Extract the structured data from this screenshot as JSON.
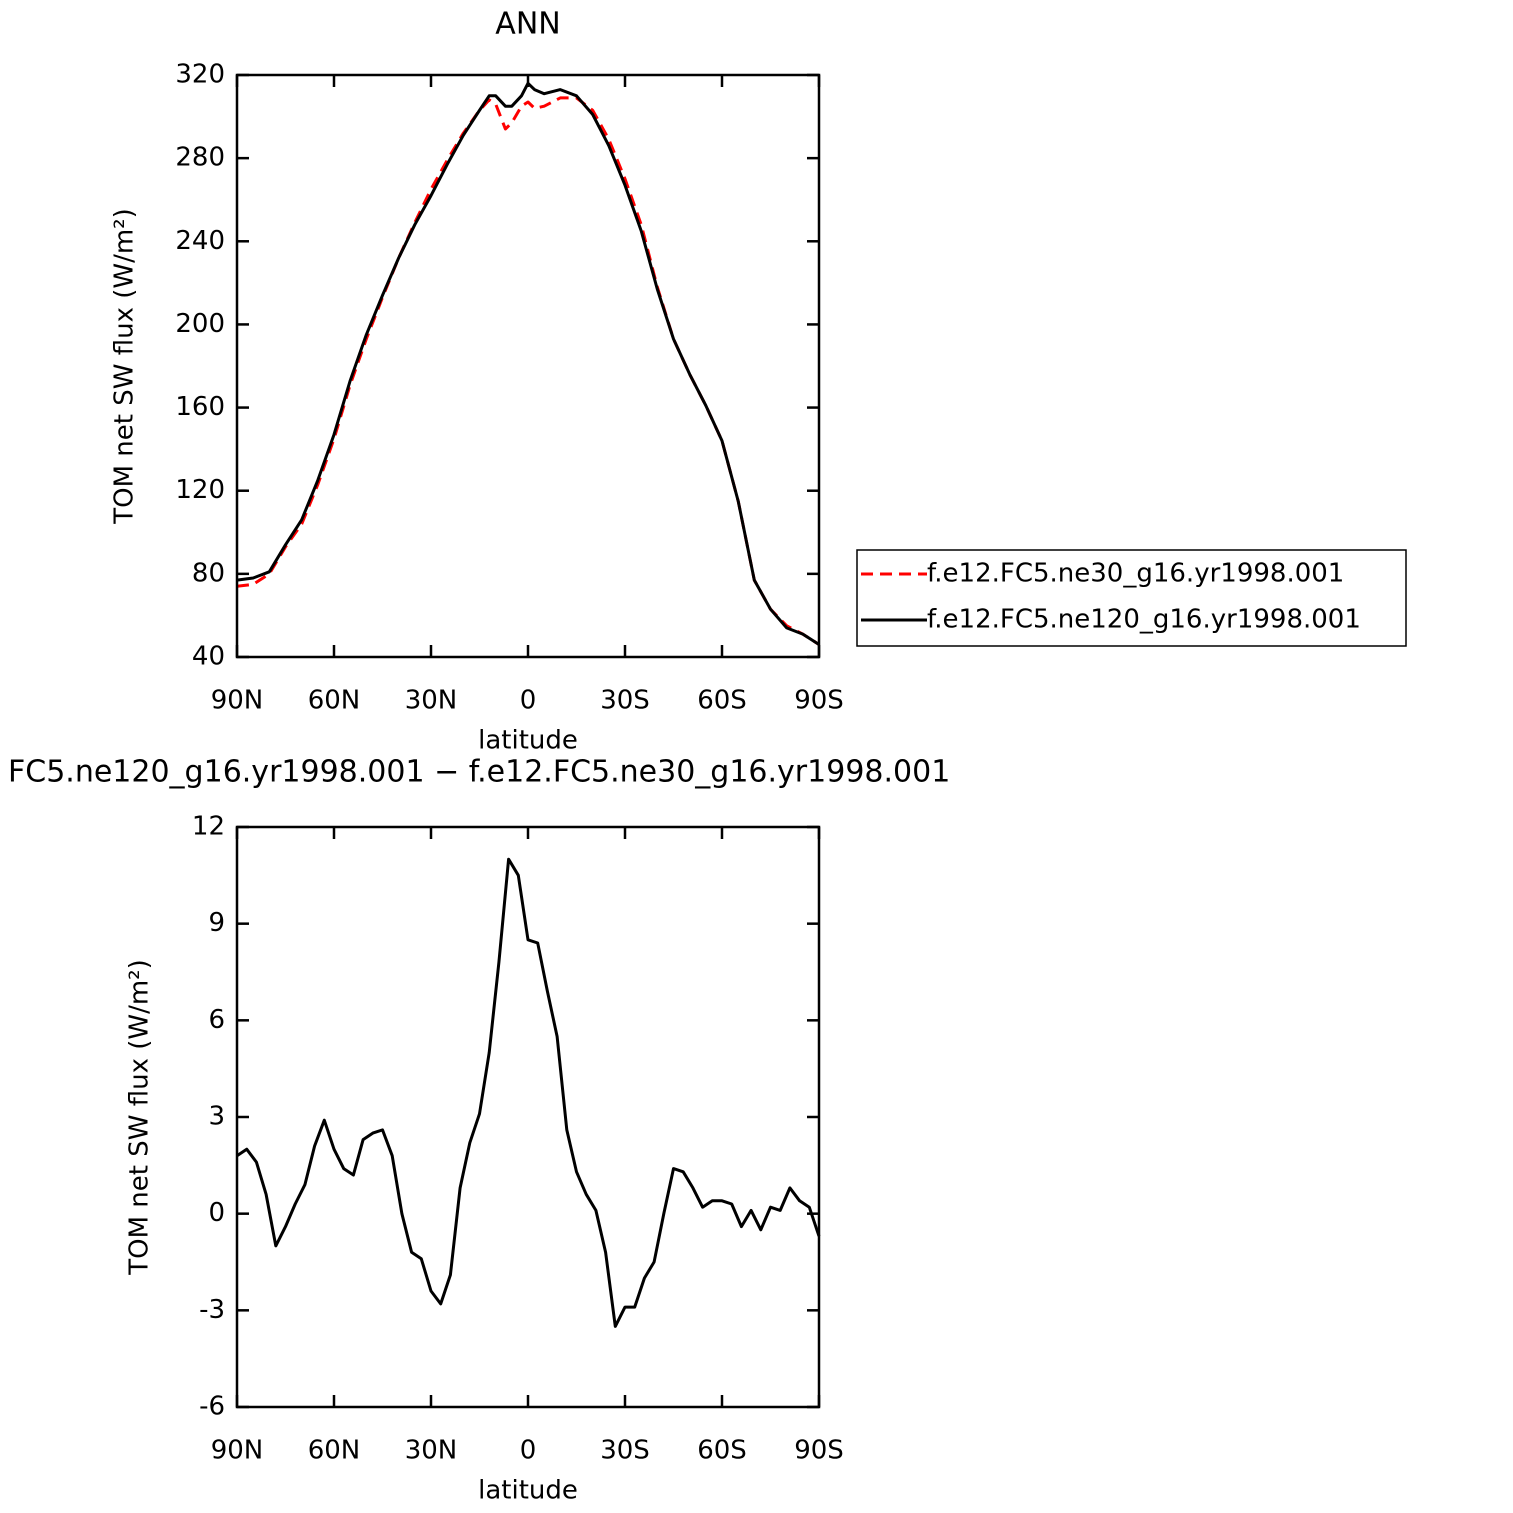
{
  "chart_data": [
    {
      "type": "line",
      "title": "ANN",
      "xlabel": "latitude",
      "ylabel": "TOM net SW flux (W/m²)",
      "x": [
        90,
        85,
        80,
        75,
        70,
        65,
        60,
        55,
        50,
        45,
        40,
        35,
        30,
        25,
        20,
        15,
        12,
        10,
        7,
        5,
        2,
        0,
        -2,
        -5,
        -10,
        -15,
        -20,
        -25,
        -30,
        -35,
        -40,
        -45,
        -50,
        -55,
        -60,
        -65,
        -70,
        -75,
        -80,
        -85,
        -90
      ],
      "series": [
        {
          "name": "f.e12.FC5.ne30_g16.yr1998.001",
          "color": "#ff0000",
          "style": "dashed",
          "values": [
            74,
            75,
            80,
            93,
            104,
            123,
            145,
            171,
            193,
            213,
            232,
            249,
            265,
            279,
            292,
            303,
            308,
            306,
            294,
            297,
            305,
            307,
            304,
            305,
            309,
            309,
            303,
            289,
            270,
            248,
            218,
            193,
            176,
            161,
            144,
            115,
            77,
            63,
            55,
            51,
            46
          ]
        },
        {
          "name": "f.e12.FC5.ne120_g16.yr1998.001",
          "color": "#000000",
          "style": "solid",
          "values": [
            77,
            78,
            81,
            94,
            106,
            125,
            147,
            173,
            195,
            214,
            232,
            248,
            262,
            277,
            291,
            303,
            310,
            310,
            305,
            305,
            310,
            316,
            313,
            311,
            313,
            310,
            301,
            286,
            267,
            245,
            217,
            193,
            176,
            161,
            144,
            115,
            77,
            63,
            54,
            51,
            46
          ]
        }
      ],
      "xlim": [
        90,
        -90
      ],
      "xticks": [
        {
          "value": 90,
          "label": "90N"
        },
        {
          "value": 60,
          "label": "60N"
        },
        {
          "value": 30,
          "label": "30N"
        },
        0,
        {
          "value": -30,
          "label": "30S"
        },
        {
          "value": -60,
          "label": "60S"
        },
        {
          "value": -90,
          "label": "90S"
        }
      ],
      "ylim": [
        40,
        320
      ],
      "yticks": [
        40,
        80,
        120,
        160,
        200,
        240,
        280,
        320
      ],
      "legend": "right"
    },
    {
      "type": "line",
      "title": "FC5.ne120_g16.yr1998.001 − f.e12.FC5.ne30_g16.yr1998.001",
      "xlabel": "latitude",
      "ylabel": "TOM net SW flux (W/m²)",
      "x": [
        90,
        87,
        84,
        81,
        78,
        75,
        72,
        69,
        66,
        63,
        60,
        57,
        54,
        51,
        48,
        45,
        42,
        39,
        36,
        33,
        30,
        27,
        24,
        21,
        18,
        15,
        12,
        9,
        6,
        3,
        0,
        -3,
        -6,
        -9,
        -12,
        -15,
        -18,
        -21,
        -24,
        -27,
        -30,
        -33,
        -36,
        -39,
        -42,
        -45,
        -48,
        -51,
        -54,
        -57,
        -60,
        -63,
        -66,
        -69,
        -72,
        -75,
        -78,
        -81,
        -84,
        -87,
        -90
      ],
      "series": [
        {
          "color": "#000000",
          "style": "solid",
          "values": [
            1.8,
            2.0,
            1.6,
            0.6,
            -1.0,
            -0.4,
            0.3,
            0.9,
            2.1,
            2.9,
            2.0,
            1.4,
            1.2,
            2.3,
            2.5,
            2.6,
            1.8,
            0.0,
            -1.2,
            -1.4,
            -2.4,
            -2.8,
            -1.9,
            0.8,
            2.2,
            3.1,
            5.0,
            7.8,
            11.0,
            10.5,
            8.5,
            8.4,
            6.9,
            5.5,
            2.6,
            1.3,
            0.6,
            0.1,
            -1.2,
            -3.5,
            -2.9,
            -2.9,
            -2.0,
            -1.5,
            0.0,
            1.4,
            1.3,
            0.8,
            0.2,
            0.4,
            0.4,
            0.3,
            -0.4,
            0.1,
            -0.5,
            0.2,
            0.1,
            0.8,
            0.4,
            0.2,
            -0.7
          ]
        }
      ],
      "xlim": [
        90,
        -90
      ],
      "xticks": [
        {
          "value": 90,
          "label": "90N"
        },
        {
          "value": 60,
          "label": "60N"
        },
        {
          "value": 30,
          "label": "30N"
        },
        0,
        {
          "value": -30,
          "label": "30S"
        },
        {
          "value": -60,
          "label": "60S"
        },
        {
          "value": -90,
          "label": "90S"
        }
      ],
      "ylim": [
        -6,
        12
      ],
      "yticks": [
        -6,
        -3,
        0,
        3,
        6,
        9,
        12
      ]
    }
  ]
}
